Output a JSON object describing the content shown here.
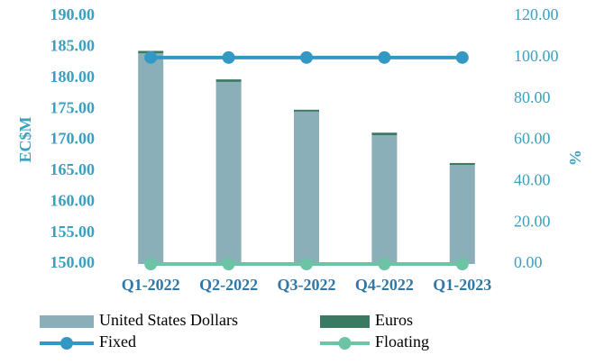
{
  "chart_data": {
    "type": "bar-line",
    "categories": [
      "Q1-2022",
      "Q2-2022",
      "Q3-2022",
      "Q4-2022",
      "Q1-2023"
    ],
    "series": [
      {
        "name": "United States Dollars",
        "type": "bar",
        "color": "#8aafb8",
        "values": [
          184.0,
          179.4,
          174.6,
          170.8,
          166.0
        ]
      },
      {
        "name": "Euros",
        "type": "bar",
        "color": "#3a7a62",
        "values": [
          0.4,
          0.4,
          0.3,
          0.4,
          0.3
        ]
      },
      {
        "name": "Fixed",
        "type": "line",
        "axis": "y2",
        "color": "#3399c4",
        "values": [
          100,
          100,
          100,
          100,
          100
        ]
      },
      {
        "name": "Floating",
        "type": "line",
        "axis": "y2",
        "color": "#6cc4a4",
        "values": [
          0,
          0,
          0,
          0,
          0
        ]
      }
    ],
    "ylabel": "EC$M",
    "y2label": "%",
    "ylim": [
      150,
      190
    ],
    "yticks": [
      {
        "value": 150,
        "label": "150.00"
      },
      {
        "value": 155,
        "label": "155.00"
      },
      {
        "value": 160,
        "label": "160.00"
      },
      {
        "value": 165,
        "label": "165.00"
      },
      {
        "value": 170,
        "label": "170.00"
      },
      {
        "value": 175,
        "label": "175.00"
      },
      {
        "value": 180,
        "label": "180.00"
      },
      {
        "value": 185,
        "label": "185.00"
      },
      {
        "value": 190,
        "label": "190.00"
      }
    ],
    "y2lim": [
      0,
      120
    ],
    "y2ticks": [
      {
        "value": 0,
        "label": "0.00"
      },
      {
        "value": 20,
        "label": "20.00"
      },
      {
        "value": 40,
        "label": "40.00"
      },
      {
        "value": 60,
        "label": "60.00"
      },
      {
        "value": 80,
        "label": "80.00"
      },
      {
        "value": 100,
        "label": "100.00"
      },
      {
        "value": 120,
        "label": "120.00"
      }
    ],
    "stacked": true,
    "legend": "bottom"
  }
}
